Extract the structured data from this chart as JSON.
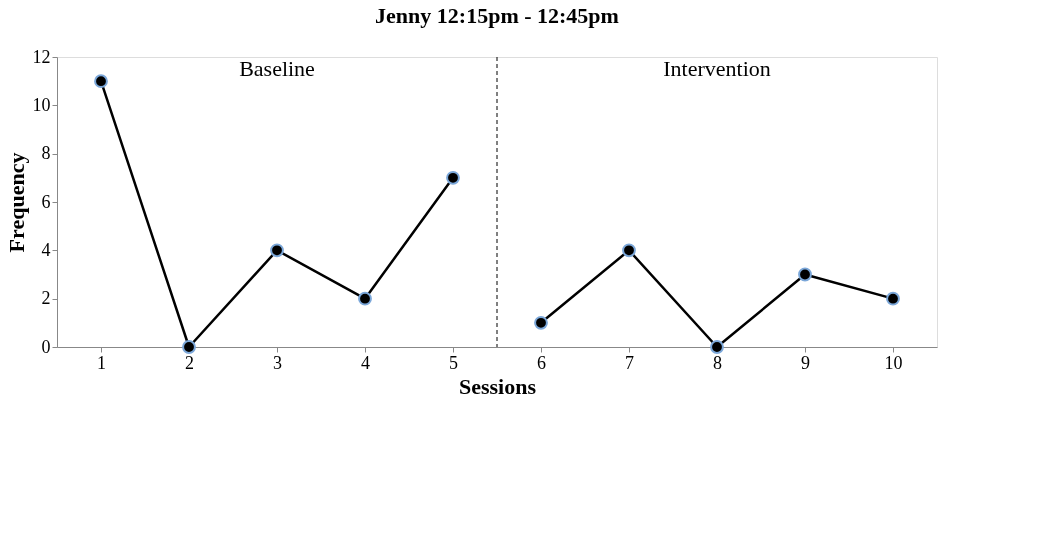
{
  "chart_data": {
    "type": "line",
    "title": "Jenny 12:15pm - 12:45pm",
    "xlabel": "Sessions",
    "ylabel": "Frequency",
    "annotations": [
      "Baseline",
      "Intervention"
    ],
    "series": [
      {
        "color": "#000000",
        "x": [
          1,
          2,
          3,
          4,
          5
        ],
        "values": [
          11,
          0,
          4,
          2,
          7
        ]
      },
      {
        "color": "#000000",
        "x": [
          6,
          7,
          8,
          9,
          10
        ],
        "values": [
          1,
          4,
          0,
          3,
          2
        ]
      }
    ],
    "xlim": [
      0.5,
      10.5
    ],
    "xticks": [
      1,
      2,
      3,
      4,
      5,
      6,
      7,
      8,
      9,
      10
    ],
    "ylim": [
      0,
      12
    ],
    "yticks": [
      0,
      2,
      4,
      6,
      8,
      10,
      12
    ],
    "ref_lines": [
      {
        "axis": "x",
        "value": 5.5,
        "color": "#000000",
        "line_style": "dashed"
      }
    ],
    "marker": "circle",
    "line_style": "solid",
    "grid": false
  }
}
